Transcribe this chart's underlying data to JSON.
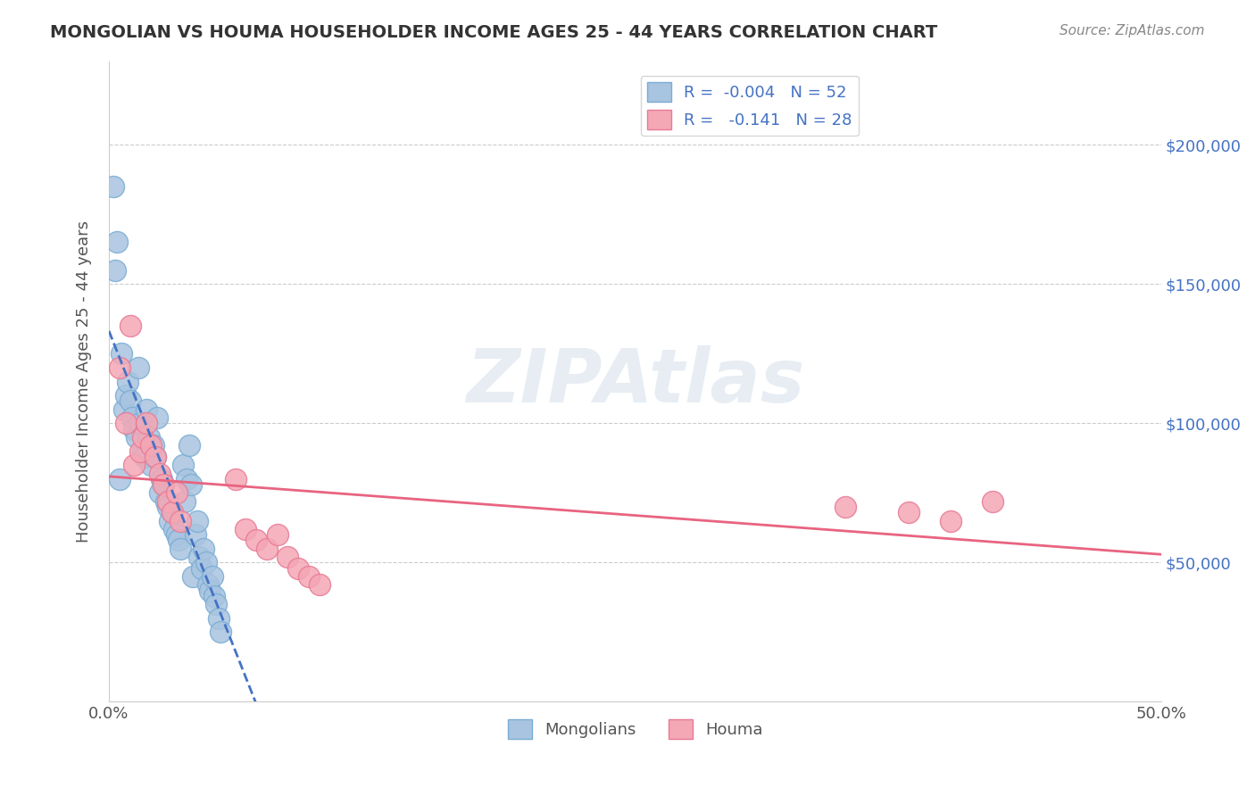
{
  "title": "MONGOLIAN VS HOUMA HOUSEHOLDER INCOME AGES 25 - 44 YEARS CORRELATION CHART",
  "source": "Source: ZipAtlas.com",
  "xlabel": "",
  "ylabel": "Householder Income Ages 25 - 44 years",
  "xlim": [
    0.0,
    0.5
  ],
  "ylim": [
    0,
    230000
  ],
  "x_ticks": [
    0.0,
    0.1,
    0.2,
    0.3,
    0.4,
    0.5
  ],
  "x_tick_labels": [
    "0.0%",
    "",
    "",
    "",
    "",
    "50.0%"
  ],
  "y_ticks": [
    0,
    50000,
    100000,
    150000,
    200000
  ],
  "y_tick_labels": [
    "",
    "$50,000",
    "$100,000",
    "$150,000",
    "$200,000"
  ],
  "mongolian_color": "#a8c4e0",
  "houma_color": "#f4a7b5",
  "mongolian_edge": "#7aadd4",
  "houma_edge": "#e87a95",
  "mongolian_line_color": "#4472c4",
  "houma_line_color": "#e86480",
  "mongolian_R": "-0.004",
  "mongolian_N": "52",
  "houma_R": "-0.141",
  "houma_N": "28",
  "watermark": "ZIPAtlas",
  "mongolian_x": [
    0.002,
    0.003,
    0.004,
    0.005,
    0.006,
    0.007,
    0.008,
    0.009,
    0.01,
    0.011,
    0.012,
    0.013,
    0.014,
    0.015,
    0.016,
    0.017,
    0.018,
    0.019,
    0.02,
    0.021,
    0.022,
    0.023,
    0.024,
    0.025,
    0.026,
    0.027,
    0.028,
    0.029,
    0.03,
    0.031,
    0.032,
    0.033,
    0.034,
    0.035,
    0.036,
    0.037,
    0.038,
    0.039,
    0.04,
    0.041,
    0.042,
    0.043,
    0.044,
    0.045,
    0.046,
    0.047,
    0.048,
    0.049,
    0.05,
    0.051,
    0.052,
    0.053
  ],
  "mongolian_y": [
    185000,
    155000,
    165000,
    80000,
    125000,
    105000,
    110000,
    115000,
    108000,
    102000,
    98000,
    95000,
    120000,
    100000,
    90000,
    88000,
    105000,
    95000,
    85000,
    92000,
    88000,
    102000,
    75000,
    80000,
    78000,
    72000,
    70000,
    65000,
    68000,
    62000,
    60000,
    58000,
    55000,
    85000,
    72000,
    80000,
    92000,
    78000,
    45000,
    60000,
    65000,
    52000,
    48000,
    55000,
    50000,
    42000,
    40000,
    45000,
    38000,
    35000,
    30000,
    25000
  ],
  "houma_x": [
    0.005,
    0.008,
    0.01,
    0.012,
    0.015,
    0.016,
    0.018,
    0.02,
    0.022,
    0.024,
    0.026,
    0.028,
    0.03,
    0.032,
    0.034,
    0.06,
    0.065,
    0.07,
    0.075,
    0.08,
    0.085,
    0.09,
    0.095,
    0.1,
    0.35,
    0.38,
    0.4,
    0.42
  ],
  "houma_y": [
    120000,
    100000,
    135000,
    85000,
    90000,
    95000,
    100000,
    92000,
    88000,
    82000,
    78000,
    72000,
    68000,
    75000,
    65000,
    80000,
    62000,
    58000,
    55000,
    60000,
    52000,
    48000,
    45000,
    42000,
    70000,
    68000,
    65000,
    72000
  ]
}
